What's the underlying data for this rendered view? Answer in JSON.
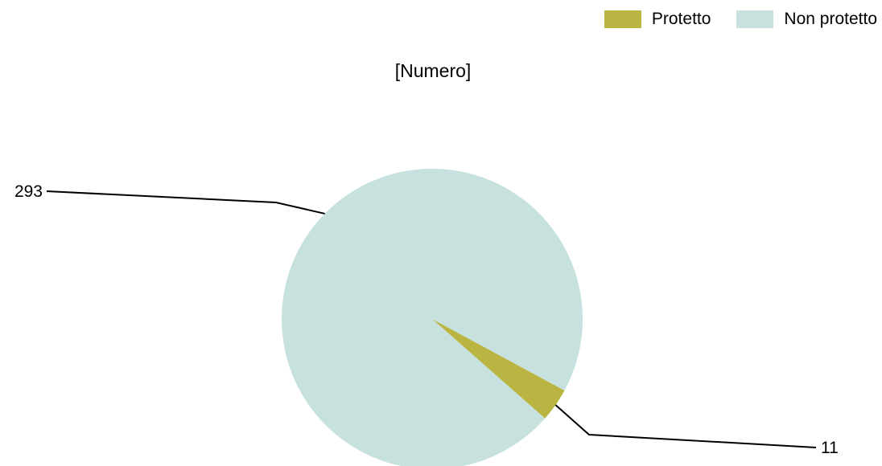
{
  "chart_data": {
    "type": "pie",
    "title": "[Numero]",
    "legend_position": "top-right",
    "slices": [
      {
        "label": "Protetto",
        "value": 11,
        "value_label": "11",
        "color": "#bab542"
      },
      {
        "label": "Non protetto",
        "value": 293,
        "value_label": "293",
        "color": "#c7e2de"
      }
    ]
  }
}
